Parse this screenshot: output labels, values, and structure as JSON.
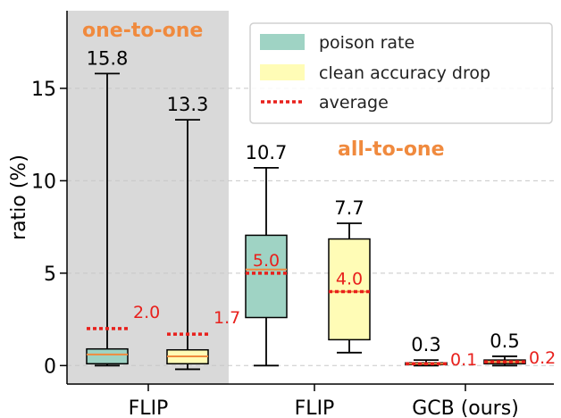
{
  "chart_data": {
    "type": "box",
    "ylabel": "ratio (%)",
    "ylim": [
      -1.0,
      19.2
    ],
    "yticks": [
      0,
      5,
      10,
      15
    ],
    "grid": "horizontal-dashed",
    "legend": {
      "placement": "top-right",
      "entries": [
        {
          "key": "poison",
          "label": "poison rate",
          "color": "#9fd3c4"
        },
        {
          "key": "clean",
          "label": "clean accuracy drop",
          "color": "#fffcb6"
        },
        {
          "key": "avg",
          "label": "average",
          "color": "#e8201c"
        }
      ]
    },
    "groups": [
      {
        "label": "one-to-one",
        "shaded": true
      },
      {
        "label": "all-to-one",
        "shaded": false
      }
    ],
    "categories": [
      "FLIP",
      "FLIP",
      "GCB (ours)"
    ],
    "boxes": [
      {
        "category": 0,
        "group": 0,
        "series": "poison",
        "min": 0.0,
        "q1": 0.1,
        "median": 0.6,
        "q3": 0.9,
        "max": 15.8,
        "mean": 2.0,
        "max_label": "15.8",
        "mean_label": "2.0"
      },
      {
        "category": 0,
        "group": 0,
        "series": "clean",
        "min": -0.2,
        "q1": 0.1,
        "median": 0.5,
        "q3": 0.85,
        "max": 13.3,
        "mean": 1.7,
        "max_label": "13.3",
        "mean_label": "1.7"
      },
      {
        "category": 1,
        "group": 1,
        "series": "poison",
        "min": 0.0,
        "q1": 2.6,
        "median": 5.2,
        "q3": 7.05,
        "max": 10.7,
        "mean": 5.0,
        "max_label": "10.7",
        "mean_label": "5.0"
      },
      {
        "category": 1,
        "group": 1,
        "series": "clean",
        "min": 0.7,
        "q1": 1.4,
        "median": 4.0,
        "q3": 6.85,
        "max": 7.7,
        "mean": 4.0,
        "max_label": "7.7",
        "mean_label": "4.0"
      },
      {
        "category": 2,
        "group": 1,
        "series": "poison",
        "min": 0.0,
        "q1": 0.05,
        "median": 0.1,
        "q3": 0.15,
        "max": 0.3,
        "mean": 0.1,
        "max_label": "0.3",
        "mean_label": "0.1"
      },
      {
        "category": 2,
        "group": 1,
        "series": "clean",
        "min": 0.0,
        "q1": 0.1,
        "median": 0.2,
        "q3": 0.3,
        "max": 0.5,
        "mean": 0.2,
        "max_label": "0.5",
        "mean_label": "0.2"
      }
    ],
    "colors": {
      "median": "#f08a3e",
      "mean": "#e8201c",
      "shade": "#d9d9d9",
      "grid": "#c8c8c8"
    }
  }
}
